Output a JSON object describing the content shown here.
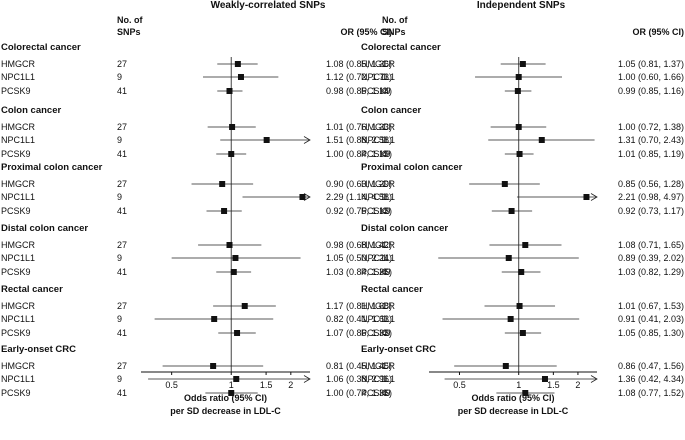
{
  "chart_data": {
    "type": "forest",
    "scale": "log",
    "xlim": [
      0.35,
      2.5
    ],
    "reference_line": 1,
    "x_ticks": [
      0.5,
      1,
      1.5,
      2
    ],
    "x_tick_labels": [
      "0.5",
      "1",
      "1.5",
      "2"
    ],
    "xlabel_line1": "Odds ratio (95% CI)",
    "xlabel_line2": "per SD decrease in LDL-C",
    "genes": [
      "HMGCR",
      "NPC1L1",
      "PCSK9"
    ],
    "groups": [
      "Colorectal cancer",
      "Colon cancer",
      "Proximal colon cancer",
      "Distal colon cancer",
      "Rectal cancer",
      "Early-onset CRC"
    ],
    "panels": [
      {
        "title": "Weakly-correlated SNPs",
        "n_header": [
          "No. of",
          "SNPs"
        ],
        "or_header": "OR (95% CI)",
        "groups": [
          {
            "rows": [
              {
                "gene": "HMGCR",
                "n": "27",
                "or": 1.08,
                "lo": 0.85,
                "hi": 1.36,
                "label": "1.08 (0.85, 1.36)"
              },
              {
                "gene": "NPC1L1",
                "n": "9",
                "or": 1.12,
                "lo": 0.72,
                "hi": 1.73,
                "label": "1.12 (0.72, 1.73)"
              },
              {
                "gene": "PCSK9",
                "n": "41",
                "or": 0.98,
                "lo": 0.85,
                "hi": 1.14,
                "label": "0.98 (0.85, 1.14)"
              }
            ]
          },
          {
            "rows": [
              {
                "gene": "HMGCR",
                "n": "27",
                "or": 1.01,
                "lo": 0.76,
                "hi": 1.33,
                "label": "1.01 (0.76, 1.33)"
              },
              {
                "gene": "NPC1L1",
                "n": "9",
                "or": 1.51,
                "lo": 0.88,
                "hi": 2.58,
                "label": "1.51 (0.88, 2.58)"
              },
              {
                "gene": "PCSK9",
                "n": "41",
                "or": 1.0,
                "lo": 0.84,
                "hi": 1.19,
                "label": "1.00 (0.84, 1.19)"
              }
            ]
          },
          {
            "rows": [
              {
                "gene": "HMGCR",
                "n": "27",
                "or": 0.9,
                "lo": 0.63,
                "hi": 1.29,
                "label": "0.90 (0.63, 1.29)"
              },
              {
                "gene": "NPC1L1",
                "n": "9",
                "or": 2.29,
                "lo": 1.14,
                "hi": 4.58,
                "label": "2.29 (1.14, 4.58)"
              },
              {
                "gene": "PCSK9",
                "n": "41",
                "or": 0.92,
                "lo": 0.75,
                "hi": 1.13,
                "label": "0.92 (0.75, 1.13)"
              }
            ]
          },
          {
            "rows": [
              {
                "gene": "HMGCR",
                "n": "27",
                "or": 0.98,
                "lo": 0.68,
                "hi": 1.42,
                "label": "0.98 (0.68, 1.42)"
              },
              {
                "gene": "NPC1L1",
                "n": "9",
                "or": 1.05,
                "lo": 0.5,
                "hi": 2.24,
                "label": "1.05 (0.50, 2.24)"
              },
              {
                "gene": "PCSK9",
                "n": "41",
                "or": 1.03,
                "lo": 0.84,
                "hi": 1.26,
                "label": "1.03 (0.84, 1.26)"
              }
            ]
          },
          {
            "rows": [
              {
                "gene": "HMGCR",
                "n": "27",
                "or": 1.17,
                "lo": 0.81,
                "hi": 1.68,
                "label": "1.17 (0.81, 1.68)"
              },
              {
                "gene": "NPC1L1",
                "n": "9",
                "or": 0.82,
                "lo": 0.41,
                "hi": 1.63,
                "label": "0.82 (0.41, 1.63)"
              },
              {
                "gene": "PCSK9",
                "n": "41",
                "or": 1.07,
                "lo": 0.86,
                "hi": 1.33,
                "label": "1.07 (0.86, 1.33)"
              }
            ]
          },
          {
            "rows": [
              {
                "gene": "HMGCR",
                "n": "27",
                "or": 0.81,
                "lo": 0.45,
                "hi": 1.45,
                "label": "0.81 (0.45, 1.45)"
              },
              {
                "gene": "NPC1L1",
                "n": "9",
                "or": 1.06,
                "lo": 0.38,
                "hi": 2.96,
                "label": "1.06 (0.38, 2.96)"
              },
              {
                "gene": "PCSK9",
                "n": "41",
                "or": 1.0,
                "lo": 0.74,
                "hi": 1.36,
                "label": "1.00 (0.74, 1.36)"
              }
            ]
          }
        ]
      },
      {
        "title": "Independent SNPs",
        "n_header": [
          "No. of",
          "SNPs"
        ],
        "or_header": "OR (95% CI)",
        "groups": [
          {
            "rows": [
              {
                "gene": "HMGCR",
                "n": "1",
                "or": 1.05,
                "lo": 0.81,
                "hi": 1.37,
                "label": "1.05 (0.81, 1.37)"
              },
              {
                "gene": "NPC1L1",
                "n": "1",
                "or": 1.0,
                "lo": 0.6,
                "hi": 1.66,
                "label": "1.00 (0.60, 1.66)"
              },
              {
                "gene": "PCSK9",
                "n": "4",
                "or": 0.99,
                "lo": 0.85,
                "hi": 1.16,
                "label": "0.99 (0.85, 1.16)"
              }
            ]
          },
          {
            "rows": [
              {
                "gene": "HMGCR",
                "n": "1",
                "or": 1.0,
                "lo": 0.72,
                "hi": 1.38,
                "label": "1.00 (0.72, 1.38)"
              },
              {
                "gene": "NPC1L1",
                "n": "1",
                "or": 1.31,
                "lo": 0.7,
                "hi": 2.43,
                "label": "1.31 (0.70, 2.43)"
              },
              {
                "gene": "PCSK9",
                "n": "4",
                "or": 1.01,
                "lo": 0.85,
                "hi": 1.19,
                "label": "1.01 (0.85, 1.19)"
              }
            ]
          },
          {
            "rows": [
              {
                "gene": "HMGCR",
                "n": "1",
                "or": 0.85,
                "lo": 0.56,
                "hi": 1.28,
                "label": "0.85 (0.56, 1.28)"
              },
              {
                "gene": "NPC1L1",
                "n": "1",
                "or": 2.21,
                "lo": 0.98,
                "hi": 4.97,
                "label": "2.21 (0.98, 4.97)"
              },
              {
                "gene": "PCSK9",
                "n": "4",
                "or": 0.92,
                "lo": 0.73,
                "hi": 1.17,
                "label": "0.92 (0.73, 1.17)"
              }
            ]
          },
          {
            "rows": [
              {
                "gene": "HMGCR",
                "n": "1",
                "or": 1.08,
                "lo": 0.71,
                "hi": 1.65,
                "label": "1.08 (0.71, 1.65)"
              },
              {
                "gene": "NPC1L1",
                "n": "1",
                "or": 0.89,
                "lo": 0.39,
                "hi": 2.02,
                "label": "0.89 (0.39, 2.02)"
              },
              {
                "gene": "PCSK9",
                "n": "4",
                "or": 1.03,
                "lo": 0.82,
                "hi": 1.29,
                "label": "1.03 (0.82, 1.29)"
              }
            ]
          },
          {
            "rows": [
              {
                "gene": "HMGCR",
                "n": "1",
                "or": 1.01,
                "lo": 0.67,
                "hi": 1.53,
                "label": "1.01 (0.67, 1.53)"
              },
              {
                "gene": "NPC1L1",
                "n": "1",
                "or": 0.91,
                "lo": 0.41,
                "hi": 2.03,
                "label": "0.91 (0.41, 2.03)"
              },
              {
                "gene": "PCSK9",
                "n": "4",
                "or": 1.05,
                "lo": 0.85,
                "hi": 1.3,
                "label": "1.05 (0.85, 1.30)"
              }
            ]
          },
          {
            "rows": [
              {
                "gene": "HMGCR",
                "n": "1",
                "or": 0.86,
                "lo": 0.47,
                "hi": 1.56,
                "label": "0.86 (0.47, 1.56)"
              },
              {
                "gene": "NPC1L1",
                "n": "1",
                "or": 1.36,
                "lo": 0.42,
                "hi": 4.34,
                "label": "1.36 (0.42, 4.34)"
              },
              {
                "gene": "PCSK9",
                "n": "4",
                "or": 1.08,
                "lo": 0.77,
                "hi": 1.52,
                "label": "1.08 (0.77, 1.52)"
              }
            ]
          }
        ]
      }
    ]
  }
}
